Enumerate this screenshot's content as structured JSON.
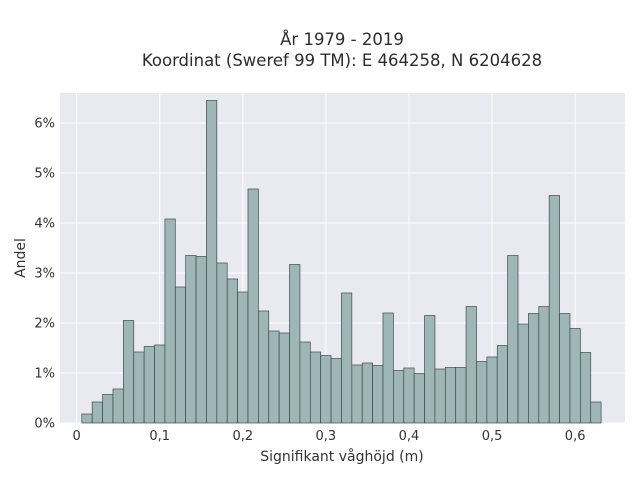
{
  "chart_data": {
    "type": "bar",
    "title_lines": [
      "År 1979 - 2019",
      "Koordinat (Sweref 99 TM): E 464258, N 6204628"
    ],
    "xlabel": "Signifikant våghöjd (m)",
    "ylabel": "Andel",
    "xlim": [
      -0.02,
      0.66
    ],
    "ylim": [
      0,
      6.6
    ],
    "x_ticks": [
      0,
      0.1,
      0.2,
      0.3,
      0.4,
      0.5,
      0.6
    ],
    "x_tick_labels": [
      "0",
      "0,1",
      "0,2",
      "0,3",
      "0,4",
      "0,5",
      "0,6"
    ],
    "y_ticks": [
      0,
      1,
      2,
      3,
      4,
      5,
      6
    ],
    "y_tick_labels": [
      "0%",
      "1%",
      "2%",
      "3%",
      "4%",
      "5%",
      "6%"
    ],
    "grid": true,
    "bin_width": 0.0125,
    "x": [
      0.0125,
      0.025,
      0.0375,
      0.05,
      0.0625,
      0.075,
      0.0875,
      0.1,
      0.1125,
      0.125,
      0.1375,
      0.15,
      0.1625,
      0.175,
      0.1875,
      0.2,
      0.2125,
      0.225,
      0.2375,
      0.25,
      0.2625,
      0.275,
      0.2875,
      0.3,
      0.3125,
      0.325,
      0.3375,
      0.35,
      0.3625,
      0.375,
      0.3875,
      0.4,
      0.4125,
      0.425,
      0.4375,
      0.45,
      0.4625,
      0.475,
      0.4875,
      0.5,
      0.5125,
      0.525,
      0.5375,
      0.55,
      0.5625,
      0.575,
      0.5875,
      0.6,
      0.6125,
      0.625
    ],
    "values": [
      0.18,
      0.42,
      0.57,
      0.68,
      2.05,
      1.42,
      1.53,
      1.56,
      4.08,
      2.72,
      3.35,
      3.33,
      6.45,
      3.2,
      2.88,
      2.62,
      4.68,
      2.24,
      1.84,
      1.8,
      3.17,
      1.62,
      1.42,
      1.35,
      1.29,
      2.6,
      1.16,
      1.2,
      1.15,
      2.2,
      1.05,
      1.1,
      0.99,
      2.15,
      1.08,
      1.11,
      1.11,
      2.33,
      1.23,
      1.32,
      1.55,
      3.35,
      1.98,
      2.19,
      2.33,
      4.55,
      2.19,
      1.89,
      1.41,
      0.42
    ],
    "colors": {
      "bar_fill": "#9fb6b8",
      "bar_stroke": "#3f4a4a",
      "plot_bg": "#e9e9f1",
      "grid": "#ffffff"
    }
  }
}
